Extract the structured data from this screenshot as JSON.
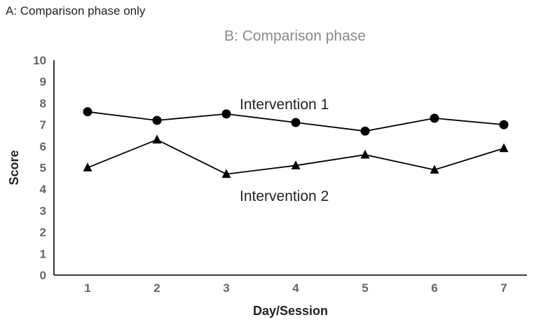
{
  "panel_label": "A: Comparison phase only",
  "chart_data": {
    "type": "line",
    "title": "B: Comparison phase",
    "xlabel": "Day/Session",
    "ylabel": "Score",
    "x": [
      1,
      2,
      3,
      4,
      5,
      6,
      7
    ],
    "xticks": [
      "1",
      "2",
      "3",
      "4",
      "5",
      "6",
      "7"
    ],
    "yticks": [
      "0",
      "1",
      "2",
      "3",
      "4",
      "5",
      "6",
      "7",
      "8",
      "9",
      "10"
    ],
    "ylim": [
      0,
      10
    ],
    "grid": false,
    "series": [
      {
        "name": "Intervention 1",
        "marker": "circle",
        "values": [
          7.6,
          7.2,
          7.5,
          7.1,
          6.7,
          7.3,
          7.0
        ]
      },
      {
        "name": "Intervention 2",
        "marker": "triangle",
        "values": [
          5.0,
          6.3,
          4.7,
          5.1,
          5.6,
          4.9,
          5.9
        ]
      }
    ],
    "line_color": "#000000",
    "axis_color": "#000000",
    "tick_color": "#666666"
  }
}
